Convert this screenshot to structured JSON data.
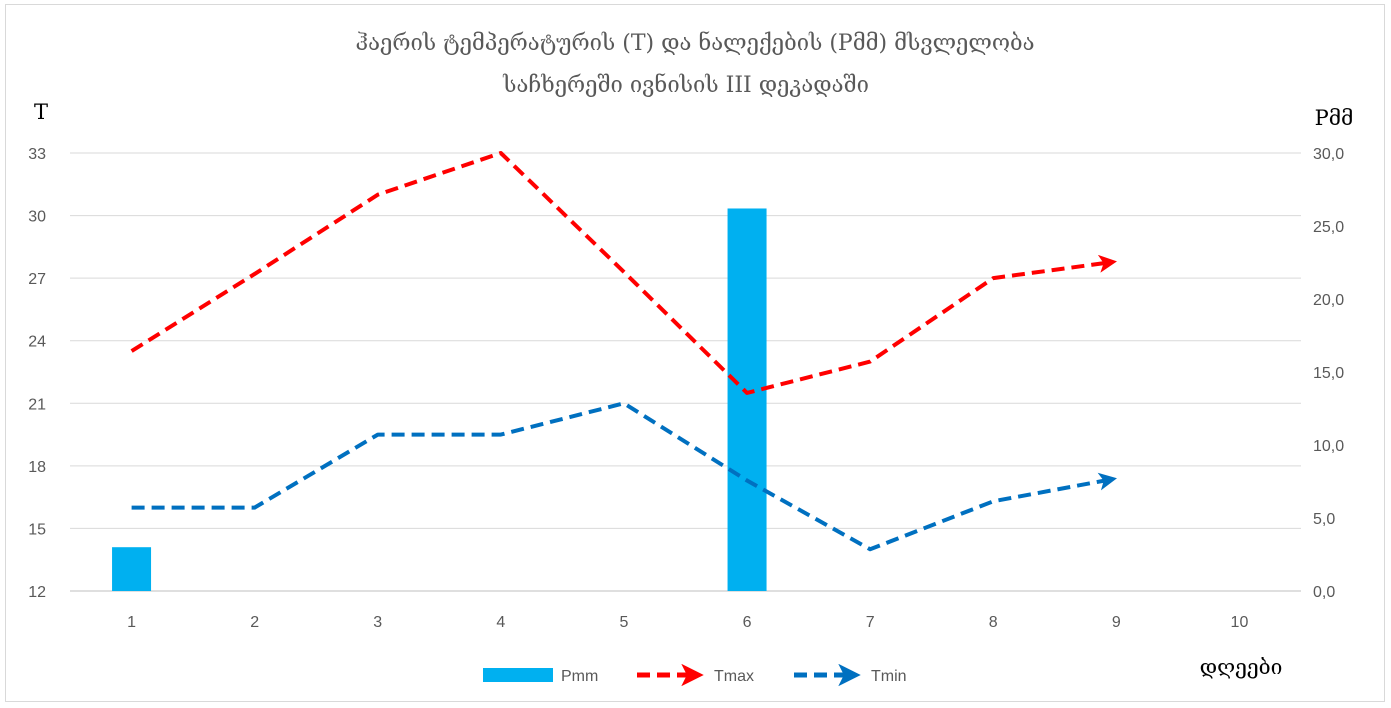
{
  "chart_data": {
    "type": "bar+line",
    "title_lines": [
      "ჰაერის ტემპერატურის (T) და ნალექების (Pმმ) მსვლელობა",
      "საჩხერეში ივნისის III დეკადაში"
    ],
    "y_left_label": "T",
    "y_right_label": "Pმმ",
    "x_label": "დღეები",
    "categories": [
      "1",
      "2",
      "3",
      "4",
      "5",
      "6",
      "7",
      "8",
      "9",
      "10"
    ],
    "y_left": {
      "min": 12,
      "max": 33,
      "ticks": [
        "12",
        "15",
        "18",
        "21",
        "24",
        "27",
        "30",
        "33"
      ]
    },
    "y_right": {
      "min": 0,
      "max": 30,
      "ticks": [
        "0,0",
        "5,0",
        "10,0",
        "15,0",
        "20,0",
        "25,0",
        "30,0"
      ]
    },
    "grid": true,
    "legend_position": "bottom",
    "series": [
      {
        "name": "Pmm",
        "kind": "bar",
        "axis": "right",
        "color": "#00b0f0",
        "values": [
          3.0,
          null,
          null,
          null,
          null,
          26.2,
          null,
          null,
          null,
          null
        ]
      },
      {
        "name": "Tmax",
        "kind": "line",
        "axis": "left",
        "color": "#ff0000",
        "style": "dashed-arrow",
        "values": [
          23.5,
          27.2,
          31.0,
          33.0,
          27.3,
          21.5,
          23.0,
          27.0,
          27.8,
          null
        ]
      },
      {
        "name": "Tmin",
        "kind": "line",
        "axis": "left",
        "color": "#0070c0",
        "style": "dashed-arrow",
        "values": [
          16.0,
          16.0,
          19.5,
          19.5,
          21.0,
          17.3,
          14.0,
          16.3,
          17.4,
          null
        ]
      }
    ]
  }
}
